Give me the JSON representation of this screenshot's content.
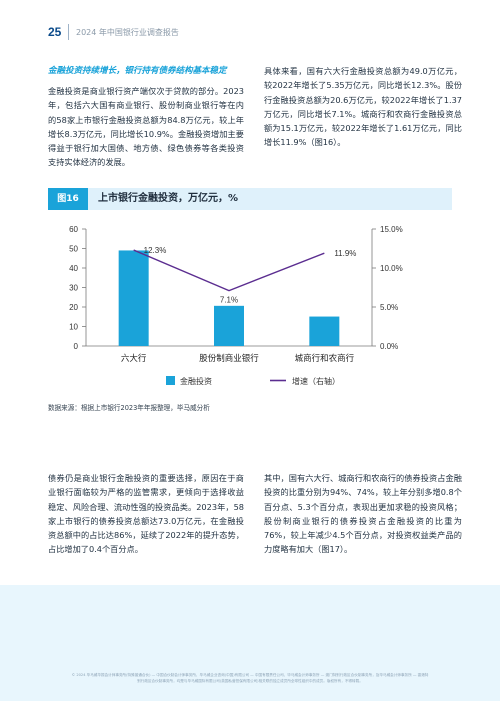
{
  "header": {
    "page_number": "25",
    "title": "2024 年中国银行业调查报告"
  },
  "section_heading": "金融投资持续增长，银行持有债券结构基本稳定",
  "para_left_1": "金融投资是商业银行资产端仅次于贷款的部分。2023年，包括六大国有商业银行、股份制商业银行等在内的58家上市银行金融投资总额为84.8万亿元，较上年增长8.3万亿元，同比增长10.9%。金融投资增加主要得益于银行加大国债、地方债、绿色债券等各类投资支持实体经济的发展。",
  "para_right_1": "具体来看，国有六大行金融投资总额为49.0万亿元，较2022年增长了5.35万亿元，同比增长12.3%。股份行金融投资总额为20.6万亿元，较2022年增长了1.37万亿元，同比增长7.1%。城商行和农商行金融投资总额为15.1万亿元，较2022年增长了1.61万亿元，同比增长11.9%（图16）。",
  "figure": {
    "tag": "图16",
    "title": "上市银行金融投资，万亿元，%"
  },
  "chart_data": {
    "type": "bar",
    "categories": [
      "六大行",
      "股份制商业银行",
      "城商行和农商行"
    ],
    "series": [
      {
        "name": "金融投资",
        "type": "bar",
        "axis": "left",
        "values": [
          49.0,
          20.6,
          15.1
        ]
      },
      {
        "name": "增速（右轴）",
        "type": "line",
        "axis": "right",
        "values": [
          12.3,
          7.1,
          11.9
        ],
        "labels": [
          "12.3%",
          "7.1%",
          "11.9%"
        ]
      }
    ],
    "y_left": {
      "min": 0,
      "max": 60,
      "ticks": [
        "0",
        "10",
        "20",
        "30",
        "40",
        "50",
        "60"
      ]
    },
    "y_right": {
      "min": 0,
      "max": 15,
      "ticks": [
        "0.0%",
        "5.0%",
        "10.0%",
        "15.0%"
      ]
    },
    "legend_position": "bottom",
    "colors": {
      "bar": "#1aa3d9",
      "line": "#5b2d90"
    }
  },
  "source": "数据来源：根据上市银行2023年年报整理，毕马威分析",
  "para_left_2": "债券仍是商业银行金融投资的重要选择，原因在于商业银行面临较为严格的监管需求，更倾向于选择收益稳定、风险合理、流动性强的投资品类。2023年，58家上市银行的债券投资总额达73.0万亿元，在金融投资总额中的占比达86%，延续了2022年的提升态势，占比增加了0.4个百分点。",
  "para_right_2": "其中，国有六大行、城商行和农商行的债券投资占金融投资的比重分别为94%、74%，较上年分别多增0.8个百分点、5.3个百分点，表现出更加求稳的投资风格；股份制商业银行的债券投资占金融投资的比重为76%，较上年减少4.5个百分点，对投资权益类产品的力度略有加大（图17）。",
  "footer_text": "© 2024 毕马威华振会计师事务所(特殊普通合伙) — 中国合伙制会计师事务所、毕马威企业咨询(中国)有限公司 — 中国有限责任公司、毕马威会计师事务所 — 澳门特别行政区合伙制事务所，及毕马威会计师事务所 — 香港特别行政区合伙制事务所，均是与毕马威国际有限公司(英国私营担保有限公司)相关联的独立成员所全球性组织中的成员。版权所有，不得转载。"
}
